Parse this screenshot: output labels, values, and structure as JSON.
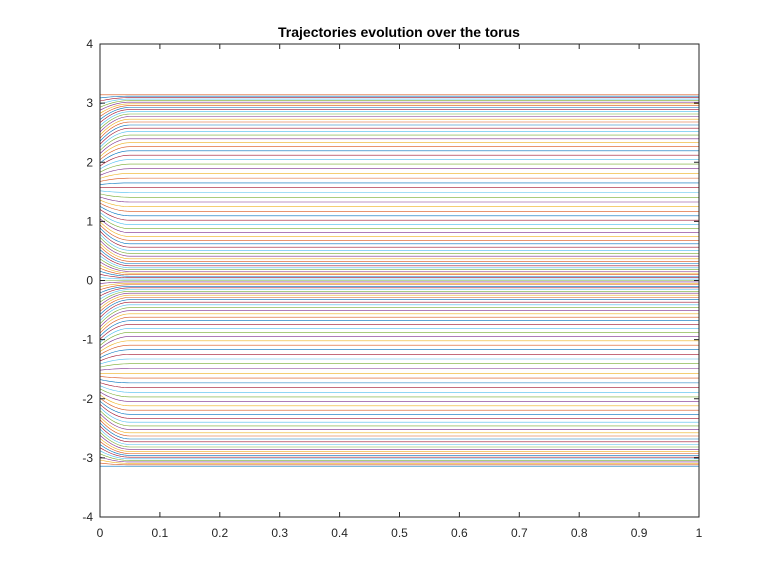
{
  "chart_data": {
    "type": "line",
    "title": "Trajectories evolution over the torus",
    "xlabel": "",
    "ylabel": "",
    "xlim": [
      0,
      1
    ],
    "ylim": [
      -4,
      4
    ],
    "x_ticks": [
      "0",
      "0.1",
      "0.2",
      "0.3",
      "0.4",
      "0.5",
      "0.6",
      "0.7",
      "0.8",
      "0.9",
      "1"
    ],
    "y_ticks": [
      "4",
      "3",
      "2",
      "1",
      "0",
      "-1",
      "-2",
      "-3",
      "-4"
    ],
    "grid": false,
    "legend": "none",
    "series_description": "Many trajectories starting evenly spaced in [-3.14, 3.14] at x=0; within x≈0.05 they settle to flat lines, clustering densely around y≈1.57 and y≈-1.57 (±π/2) while endpoints at y≈±3.14 and y≈0 remain fixed.",
    "trajectory_count": 121,
    "initial_range": [
      -3.14,
      3.14
    ],
    "attractors": [
      1.57,
      -1.57
    ],
    "settle_time": 0.05,
    "colors": [
      "#0072bd",
      "#d95319",
      "#edb120",
      "#7e2f8e",
      "#77ac30",
      "#4dbeee",
      "#a2142f"
    ]
  }
}
